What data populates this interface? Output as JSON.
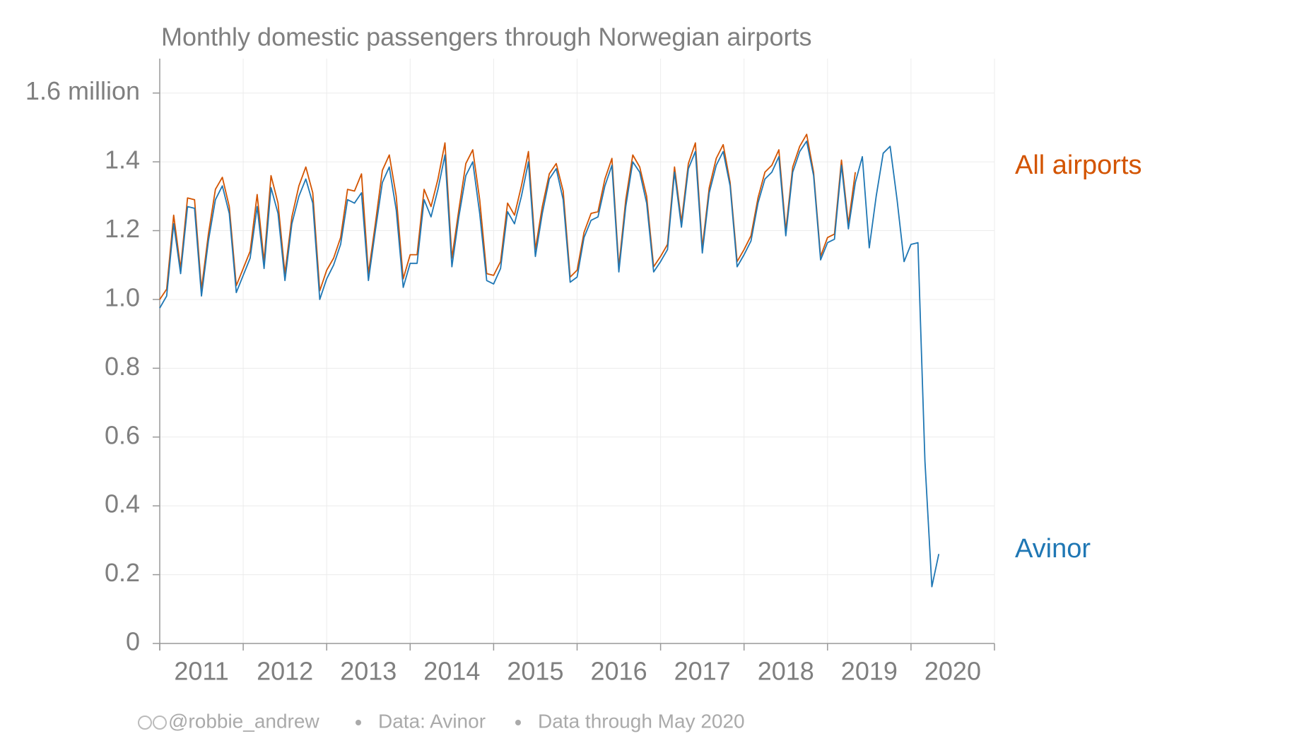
{
  "chart_data": {
    "type": "line",
    "title": "Monthly domestic passengers through Norwegian airports",
    "x": [
      2011,
      2011.083,
      2011.167,
      2011.25,
      2011.333,
      2011.417,
      2011.5,
      2011.583,
      2011.667,
      2011.75,
      2011.833,
      2011.917,
      2012,
      2012.083,
      2012.167,
      2012.25,
      2012.333,
      2012.417,
      2012.5,
      2012.583,
      2012.667,
      2012.75,
      2012.833,
      2012.917,
      2013,
      2013.083,
      2013.167,
      2013.25,
      2013.333,
      2013.417,
      2013.5,
      2013.583,
      2013.667,
      2013.75,
      2013.833,
      2013.917,
      2014,
      2014.083,
      2014.167,
      2014.25,
      2014.333,
      2014.417,
      2014.5,
      2014.583,
      2014.667,
      2014.75,
      2014.833,
      2014.917,
      2015,
      2015.083,
      2015.167,
      2015.25,
      2015.333,
      2015.417,
      2015.5,
      2015.583,
      2015.667,
      2015.75,
      2015.833,
      2015.917,
      2016,
      2016.083,
      2016.167,
      2016.25,
      2016.333,
      2016.417,
      2016.5,
      2016.583,
      2016.667,
      2016.75,
      2016.833,
      2016.917,
      2017,
      2017.083,
      2017.167,
      2017.25,
      2017.333,
      2017.417,
      2017.5,
      2017.583,
      2017.667,
      2017.75,
      2017.833,
      2017.917,
      2018,
      2018.083,
      2018.167,
      2018.25,
      2018.333,
      2018.417,
      2018.5,
      2018.583,
      2018.667,
      2018.75,
      2018.833,
      2018.917,
      2019,
      2019.083,
      2019.167,
      2019.25,
      2019.333,
      2019.417,
      2019.5,
      2019.583,
      2019.667,
      2019.75,
      2019.833,
      2019.917,
      2020,
      2020.083,
      2020.167,
      2020.25,
      2020.333
    ],
    "series": [
      {
        "name": "All airports",
        "color": "#d35400",
        "values": [
          1.0,
          1.03,
          1.245,
          1.09,
          1.295,
          1.29,
          1.03,
          1.19,
          1.32,
          1.355,
          1.27,
          1.04,
          1.09,
          1.14,
          1.305,
          1.11,
          1.36,
          1.28,
          1.075,
          1.24,
          1.33,
          1.385,
          1.31,
          1.025,
          1.085,
          1.12,
          1.18,
          1.32,
          1.315,
          1.365,
          1.075,
          1.22,
          1.375,
          1.42,
          1.3,
          1.06,
          1.13,
          1.13,
          1.32,
          1.27,
          1.35,
          1.455,
          1.12,
          1.26,
          1.395,
          1.435,
          1.29,
          1.075,
          1.07,
          1.11,
          1.28,
          1.245,
          1.33,
          1.43,
          1.145,
          1.27,
          1.365,
          1.395,
          1.315,
          1.065,
          1.085,
          1.195,
          1.25,
          1.255,
          1.35,
          1.41,
          1.095,
          1.29,
          1.42,
          1.385,
          1.3,
          1.095,
          1.125,
          1.16,
          1.385,
          1.225,
          1.395,
          1.455,
          1.15,
          1.325,
          1.41,
          1.45,
          1.34,
          1.11,
          1.145,
          1.185,
          1.295,
          1.37,
          1.39,
          1.435,
          1.2,
          1.385,
          1.445,
          1.48,
          1.37,
          1.125,
          1.18,
          1.19,
          1.405,
          1.22,
          1.37,
          null,
          null,
          null,
          null,
          null,
          null,
          null,
          null,
          null,
          null,
          null,
          null
        ]
      },
      {
        "name": "Avinor",
        "color": "#1f77b4",
        "values": [
          0.975,
          1.01,
          1.22,
          1.075,
          1.27,
          1.265,
          1.01,
          1.17,
          1.29,
          1.33,
          1.25,
          1.02,
          1.07,
          1.12,
          1.27,
          1.09,
          1.325,
          1.25,
          1.055,
          1.22,
          1.3,
          1.35,
          1.28,
          1.0,
          1.06,
          1.1,
          1.16,
          1.29,
          1.28,
          1.31,
          1.055,
          1.2,
          1.34,
          1.385,
          1.26,
          1.035,
          1.105,
          1.105,
          1.29,
          1.24,
          1.32,
          1.42,
          1.095,
          1.24,
          1.36,
          1.4,
          1.25,
          1.055,
          1.045,
          1.09,
          1.255,
          1.22,
          1.3,
          1.4,
          1.125,
          1.25,
          1.35,
          1.38,
          1.29,
          1.05,
          1.065,
          1.18,
          1.23,
          1.24,
          1.33,
          1.39,
          1.08,
          1.27,
          1.4,
          1.37,
          1.28,
          1.08,
          1.11,
          1.145,
          1.37,
          1.21,
          1.38,
          1.43,
          1.135,
          1.31,
          1.39,
          1.43,
          1.33,
          1.095,
          1.13,
          1.17,
          1.28,
          1.35,
          1.37,
          1.415,
          1.185,
          1.37,
          1.43,
          1.46,
          1.36,
          1.115,
          1.165,
          1.175,
          1.39,
          1.205,
          1.34,
          1.415,
          1.15,
          1.3,
          1.425,
          1.445,
          1.29,
          1.11,
          1.16,
          1.165,
          0.53,
          0.165,
          0.26
        ]
      }
    ],
    "xlim": [
      2011,
      2021
    ],
    "xticks": [
      2011,
      2012,
      2013,
      2014,
      2015,
      2016,
      2017,
      2018,
      2019,
      2020
    ],
    "ylim": [
      0,
      1.7
    ],
    "yticks": [
      0,
      0.2,
      0.4,
      0.6,
      0.8,
      {
        "value": 1,
        "label": "1.0"
      },
      1.2,
      1.4,
      {
        "value": 1.6,
        "label": "1.6 million"
      }
    ],
    "grid": true,
    "credit": "@robbie_andrew",
    "source": "Data: Avinor",
    "note": "Data through May 2020"
  }
}
